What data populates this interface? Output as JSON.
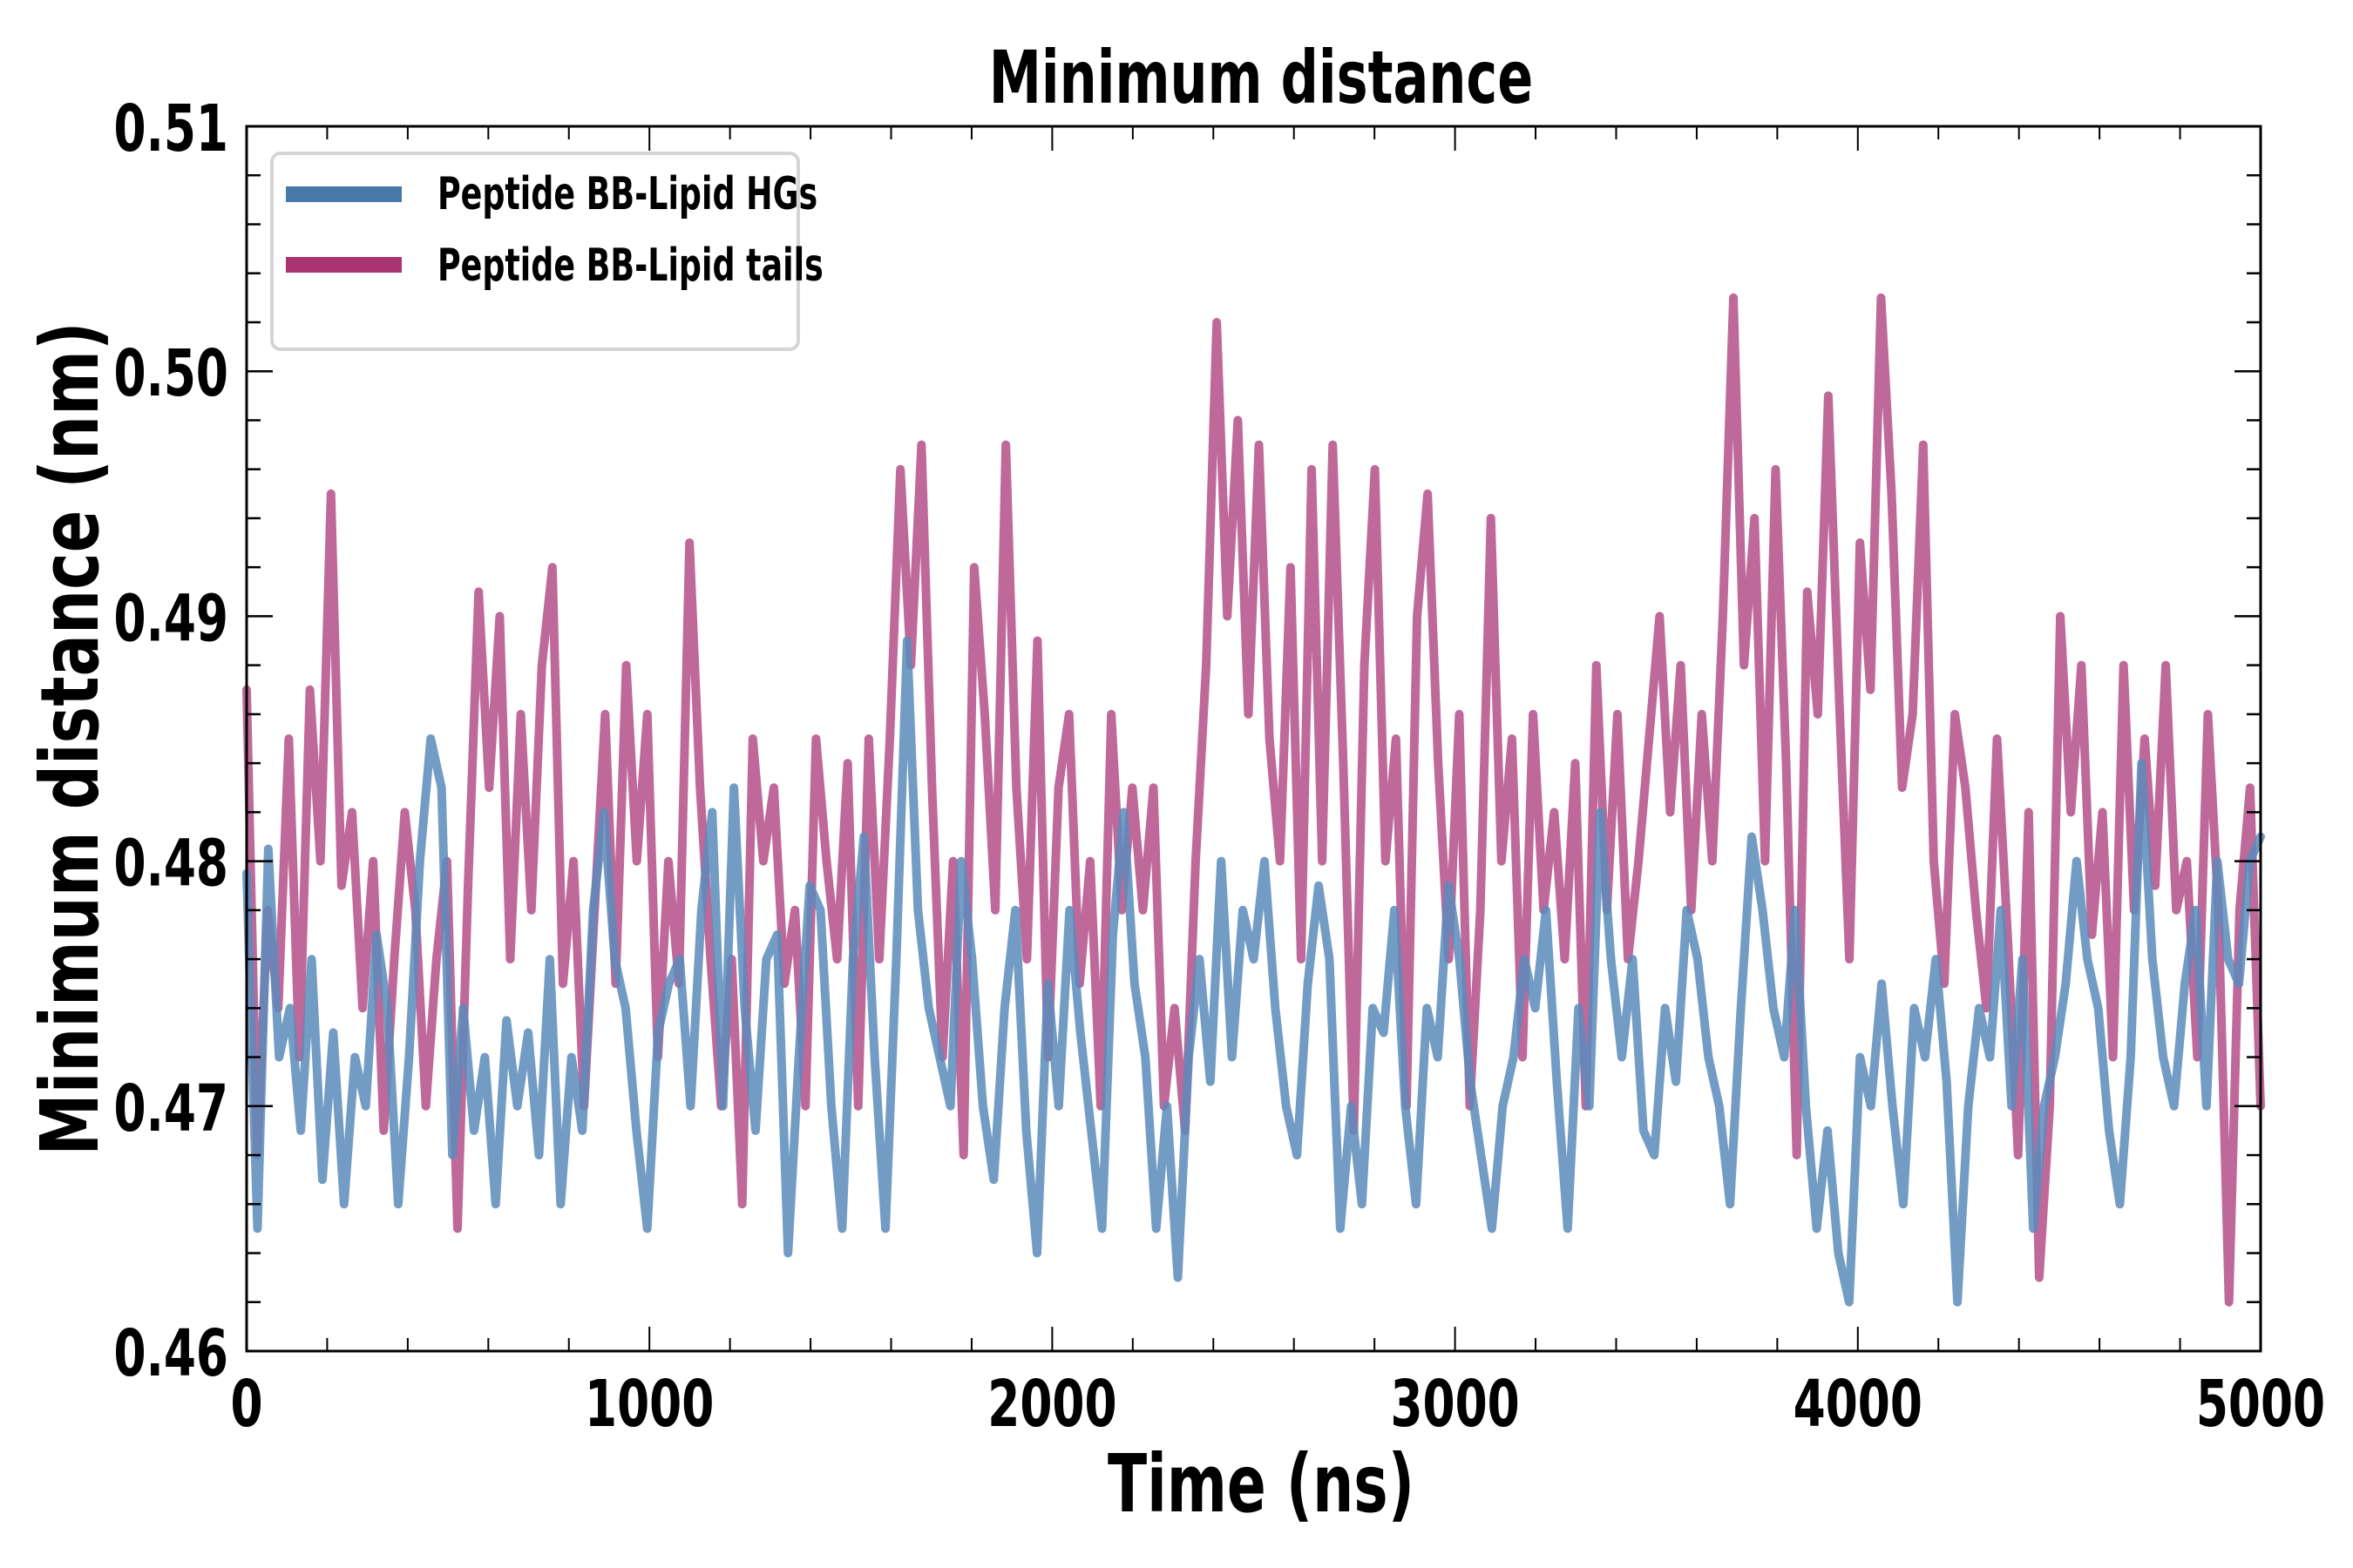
{
  "chart_data": {
    "type": "line",
    "title": "Minimum distance",
    "xlabel": "Time (ns)",
    "ylabel": "Minimum distance (nm)",
    "xlim": [
      0,
      5000
    ],
    "ylim": [
      0.46,
      0.51
    ],
    "x_ticks": [
      0,
      1000,
      2000,
      3000,
      4000,
      5000
    ],
    "x_tick_labels": [
      "0",
      "1000",
      "2000",
      "3000",
      "4000",
      "5000"
    ],
    "x_minor_step": 200,
    "y_ticks": [
      0.46,
      0.47,
      0.48,
      0.49,
      0.5,
      0.51
    ],
    "y_tick_labels": [
      "0.46",
      "0.47",
      "0.48",
      "0.49",
      "0.50",
      "0.51"
    ],
    "y_minor_step": 0.002,
    "grid": false,
    "legend_position": "top-left",
    "x_step": 50,
    "series": [
      {
        "name": "Peptide BB-Lipid HGs",
        "color": "#4878a8",
        "values": [
          0.4795,
          0.465,
          0.4805,
          0.472,
          0.474,
          0.469,
          0.476,
          0.467,
          0.473,
          0.466,
          0.472,
          0.47,
          0.477,
          0.474,
          0.466,
          0.472,
          0.48,
          0.485,
          0.483,
          0.468,
          0.474,
          0.469,
          0.472,
          0.466,
          0.4735,
          0.47,
          0.473,
          0.468,
          0.476,
          0.466,
          0.472,
          0.469,
          0.478,
          0.482,
          0.476,
          0.474,
          0.469,
          0.465,
          0.473,
          0.475,
          0.476,
          0.47,
          0.478,
          0.482,
          0.47,
          0.483,
          0.474,
          0.469,
          0.476,
          0.477,
          0.464,
          0.472,
          0.479,
          0.478,
          0.47,
          0.465,
          0.476,
          0.481,
          0.472,
          0.465,
          0.476,
          0.489,
          0.478,
          0.474,
          0.472,
          0.47,
          0.48,
          0.476,
          0.47,
          0.467,
          0.474,
          0.478,
          0.469,
          0.464,
          0.475,
          0.47,
          0.478,
          0.473,
          0.469,
          0.465,
          0.477,
          0.482,
          0.475,
          0.472,
          0.465,
          0.47,
          0.463,
          0.472,
          0.476,
          0.471,
          0.48,
          0.472,
          0.478,
          0.476,
          0.48,
          0.474,
          0.47,
          0.468,
          0.475,
          0.479,
          0.476,
          0.465,
          0.47,
          0.466,
          0.474,
          0.473,
          0.478,
          0.47,
          0.466,
          0.474,
          0.472,
          0.479,
          0.476,
          0.471,
          0.468,
          0.465,
          0.47,
          0.472,
          0.476,
          0.474,
          0.478,
          0.471,
          0.465,
          0.474,
          0.47,
          0.482,
          0.476,
          0.472,
          0.476,
          0.469,
          0.468,
          0.474,
          0.471,
          0.478,
          0.476,
          0.472,
          0.47,
          0.466,
          0.474,
          0.481,
          0.478,
          0.474,
          0.472,
          0.478,
          0.47,
          0.465,
          0.469,
          0.464,
          0.462,
          0.472,
          0.47,
          0.475,
          0.47,
          0.466,
          0.474,
          0.472,
          0.476,
          0.471,
          0.462,
          0.47,
          0.474,
          0.472,
          0.478,
          0.47,
          0.476,
          0.465,
          0.47,
          0.472,
          0.475,
          0.48,
          0.476,
          0.474,
          0.469,
          0.466,
          0.472,
          0.484,
          0.476,
          0.472,
          0.47,
          0.475,
          0.478,
          0.47,
          0.48,
          0.476,
          0.475,
          0.48,
          0.481
        ]
      },
      {
        "name": "Peptide BB-Lipid tails",
        "color": "#a83470",
        "values": [
          0.487,
          0.468,
          0.478,
          0.474,
          0.485,
          0.472,
          0.487,
          0.48,
          0.495,
          0.479,
          0.482,
          0.474,
          0.48,
          0.469,
          0.476,
          0.482,
          0.478,
          0.47,
          0.476,
          0.48,
          0.465,
          0.479,
          0.491,
          0.483,
          0.49,
          0.476,
          0.486,
          0.478,
          0.488,
          0.492,
          0.475,
          0.48,
          0.47,
          0.478,
          0.486,
          0.475,
          0.488,
          0.48,
          0.486,
          0.472,
          0.48,
          0.475,
          0.493,
          0.483,
          0.476,
          0.47,
          0.476,
          0.466,
          0.485,
          0.48,
          0.483,
          0.475,
          0.478,
          0.47,
          0.485,
          0.48,
          0.476,
          0.484,
          0.47,
          0.485,
          0.476,
          0.485,
          0.496,
          0.488,
          0.497,
          0.483,
          0.472,
          0.48,
          0.468,
          0.492,
          0.486,
          0.478,
          0.497,
          0.483,
          0.476,
          0.489,
          0.472,
          0.483,
          0.486,
          0.475,
          0.48,
          0.47,
          0.486,
          0.478,
          0.483,
          0.478,
          0.483,
          0.47,
          0.474,
          0.469,
          0.48,
          0.488,
          0.502,
          0.49,
          0.498,
          0.486,
          0.497,
          0.485,
          0.48,
          0.492,
          0.476,
          0.496,
          0.48,
          0.497,
          0.484,
          0.469,
          0.488,
          0.496,
          0.48,
          0.485,
          0.47,
          0.49,
          0.495,
          0.484,
          0.476,
          0.486,
          0.47,
          0.478,
          0.494,
          0.48,
          0.485,
          0.472,
          0.486,
          0.478,
          0.482,
          0.476,
          0.484,
          0.47,
          0.488,
          0.478,
          0.486,
          0.476,
          0.48,
          0.485,
          0.49,
          0.482,
          0.488,
          0.478,
          0.486,
          0.48,
          0.49,
          0.503,
          0.488,
          0.494,
          0.48,
          0.496,
          0.484,
          0.468,
          0.491,
          0.486,
          0.499,
          0.487,
          0.476,
          0.493,
          0.487,
          0.503,
          0.495,
          0.483,
          0.486,
          0.497,
          0.48,
          0.475,
          0.486,
          0.483,
          0.478,
          0.474,
          0.485,
          0.477,
          0.468,
          0.482,
          0.463,
          0.47,
          0.49,
          0.482,
          0.488,
          0.477,
          0.482,
          0.472,
          0.488,
          0.478,
          0.485,
          0.479,
          0.488,
          0.478,
          0.48,
          0.472,
          0.486,
          0.478,
          0.462,
          0.478,
          0.483,
          0.47
        ]
      }
    ]
  }
}
